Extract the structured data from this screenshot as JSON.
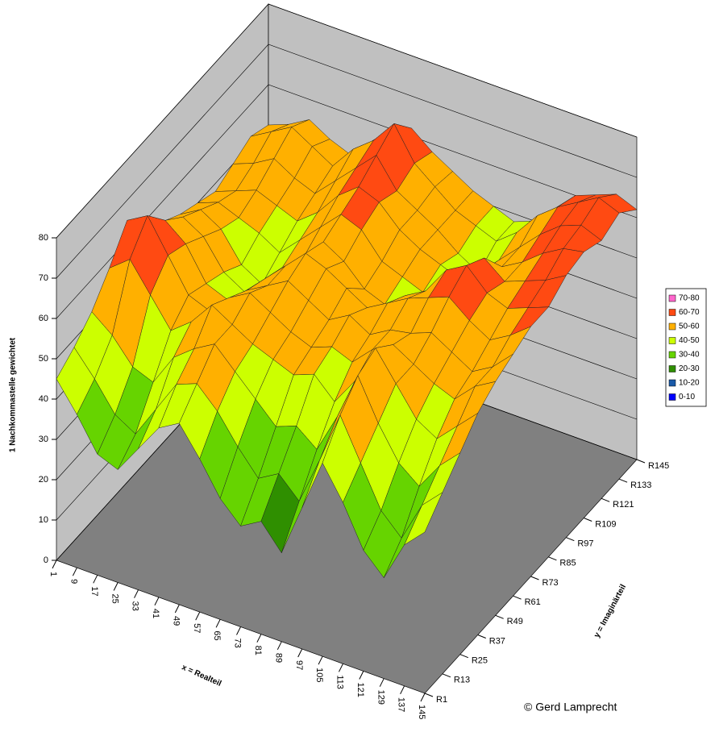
{
  "chart_data": {
    "type": "surface",
    "z_title": "1 Nachkommastelle gewichtet",
    "x_title": "x = Realteil",
    "y_title": "y = Imaginärteil",
    "credit": "© Gerd Lamprecht",
    "x": [
      "1",
      "9",
      "17",
      "25",
      "33",
      "41",
      "49",
      "57",
      "65",
      "73",
      "81",
      "89",
      "97",
      "105",
      "113",
      "121",
      "129",
      "137",
      "145"
    ],
    "y": [
      "R1",
      "R13",
      "R25",
      "R37",
      "R49",
      "R61",
      "R73",
      "R85",
      "R97",
      "R109",
      "R121",
      "R133",
      "R145"
    ],
    "zlim": [
      0,
      80
    ],
    "zticks": [
      0,
      10,
      20,
      30,
      40,
      50,
      60,
      70,
      80
    ],
    "grid": true,
    "legend_position": "right",
    "legend": [
      {
        "label": "70-80",
        "color": "#ff66cc"
      },
      {
        "label": "60-70",
        "color": "#ff4a12"
      },
      {
        "label": "50-60",
        "color": "#ffb000"
      },
      {
        "label": "40-50",
        "color": "#ccff00"
      },
      {
        "label": "30-40",
        "color": "#66d400"
      },
      {
        "label": "20-30",
        "color": "#2f8f00"
      },
      {
        "label": "10-20",
        "color": "#1a5aa8"
      },
      {
        "label": "0-10",
        "color": "#0000ff"
      }
    ],
    "z": [
      [
        45,
        38,
        30,
        28,
        35,
        42,
        45,
        38,
        30,
        25,
        28,
        22,
        35,
        48,
        40,
        30,
        25,
        35,
        40
      ],
      [
        48,
        42,
        35,
        32,
        40,
        48,
        50,
        45,
        38,
        32,
        35,
        30,
        42,
        55,
        45,
        35,
        30,
        40,
        45
      ],
      [
        52,
        48,
        42,
        40,
        48,
        52,
        55,
        50,
        45,
        40,
        42,
        38,
        48,
        60,
        50,
        42,
        38,
        45,
        50
      ],
      [
        58,
        62,
        55,
        48,
        52,
        58,
        55,
        52,
        50,
        48,
        50,
        45,
        52,
        62,
        55,
        48,
        45,
        50,
        55
      ],
      [
        65,
        68,
        60,
        52,
        50,
        55,
        58,
        55,
        52,
        50,
        52,
        50,
        55,
        58,
        55,
        52,
        50,
        55,
        58
      ],
      [
        60,
        62,
        58,
        50,
        48,
        52,
        55,
        58,
        55,
        52,
        55,
        52,
        55,
        56,
        58,
        55,
        52,
        55,
        60
      ],
      [
        55,
        58,
        55,
        48,
        45,
        50,
        55,
        60,
        58,
        55,
        52,
        55,
        58,
        60,
        62,
        58,
        55,
        58,
        62
      ],
      [
        52,
        55,
        52,
        45,
        42,
        48,
        52,
        58,
        55,
        50,
        48,
        52,
        55,
        62,
        65,
        60,
        58,
        60,
        62
      ],
      [
        50,
        52,
        50,
        48,
        45,
        50,
        55,
        60,
        58,
        52,
        50,
        48,
        52,
        58,
        62,
        58,
        60,
        62,
        65
      ],
      [
        48,
        50,
        52,
        50,
        48,
        52,
        58,
        62,
        60,
        55,
        52,
        50,
        48,
        52,
        55,
        58,
        62,
        65,
        66
      ],
      [
        50,
        52,
        55,
        52,
        50,
        55,
        60,
        65,
        58,
        55,
        52,
        48,
        45,
        50,
        55,
        60,
        64,
        66,
        64
      ],
      [
        52,
        55,
        58,
        55,
        52,
        58,
        62,
        68,
        60,
        56,
        52,
        50,
        48,
        52,
        58,
        62,
        65,
        68,
        66
      ],
      [
        50,
        52,
        55,
        52,
        50,
        55,
        60,
        62,
        58,
        55,
        52,
        50,
        48,
        50,
        55,
        60,
        62,
        64,
        62
      ]
    ]
  }
}
